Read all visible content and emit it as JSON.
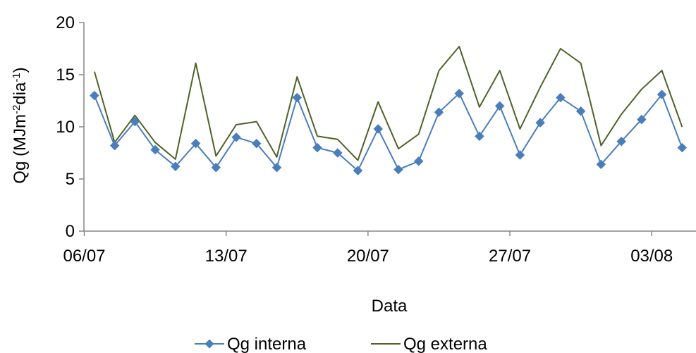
{
  "chart_data": {
    "type": "line",
    "xlabel": "Data",
    "ylabel": {
      "base": "Qg (MJm",
      "sup1": "-2",
      "mid": "dia",
      "sup2": "-1",
      "end": ")"
    },
    "ylim": [
      0,
      20
    ],
    "yticks": [
      0,
      5,
      10,
      15,
      20
    ],
    "xlim": [
      0,
      29.5
    ],
    "xticks": [
      {
        "x": 0,
        "label": "06/07"
      },
      {
        "x": 7,
        "label": "13/07"
      },
      {
        "x": 14,
        "label": "20/07"
      },
      {
        "x": 21,
        "label": "27/07"
      },
      {
        "x": 28,
        "label": "03/08"
      }
    ],
    "x": [
      0.5,
      1.5,
      2.5,
      3.5,
      4.5,
      5.5,
      6.5,
      7.5,
      8.5,
      9.5,
      10.5,
      11.5,
      12.5,
      13.5,
      14.5,
      15.5,
      16.5,
      17.5,
      18.5,
      19.5,
      20.5,
      21.5,
      22.5,
      23.5,
      24.5,
      25.5,
      26.5,
      27.5,
      28.5,
      29.5
    ],
    "series": [
      {
        "name": "Qg interna",
        "color": "#4a7ebb",
        "marker": "diamond",
        "values": [
          13.0,
          8.2,
          10.5,
          7.8,
          6.2,
          8.4,
          6.1,
          9.0,
          8.4,
          6.1,
          12.8,
          8.0,
          7.5,
          5.8,
          9.8,
          5.9,
          6.7,
          11.4,
          13.2,
          9.1,
          12.0,
          7.3,
          10.4,
          12.8,
          11.5,
          6.4,
          8.6,
          10.7,
          13.1,
          8.0
        ]
      },
      {
        "name": "Qg externa",
        "color": "#4f6228",
        "marker": "none",
        "values": [
          15.3,
          8.5,
          11.1,
          8.5,
          6.9,
          16.1,
          7.2,
          10.2,
          10.5,
          7.1,
          14.8,
          9.1,
          8.8,
          6.8,
          12.4,
          7.9,
          9.3,
          15.4,
          17.7,
          11.9,
          15.4,
          9.8,
          13.8,
          17.5,
          16.1,
          8.2,
          11.2,
          13.6,
          15.4,
          10.0
        ]
      }
    ],
    "grid": false,
    "legend": "bottom"
  }
}
